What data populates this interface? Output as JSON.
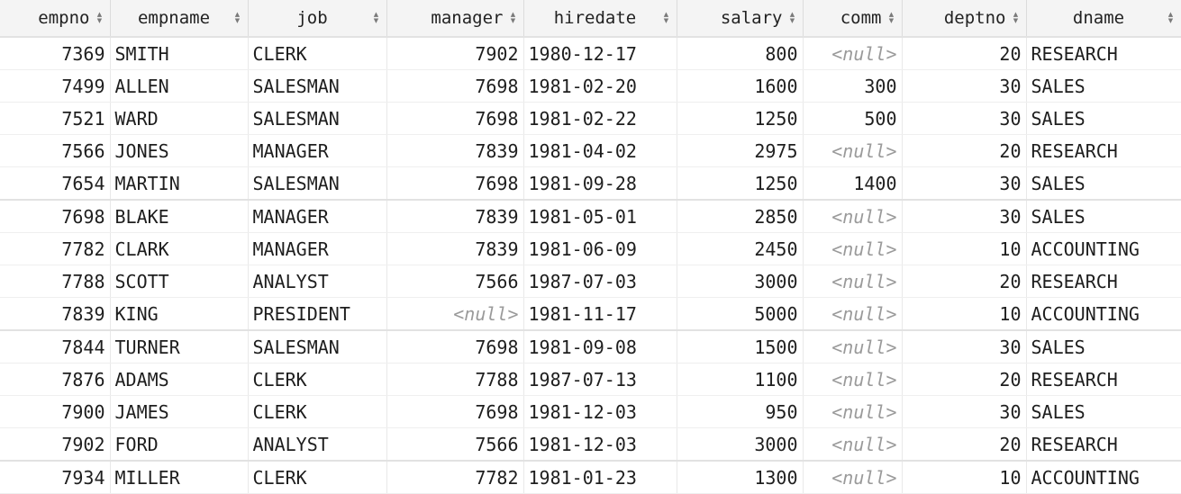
{
  "columns": [
    {
      "label": "empno",
      "align": "num"
    },
    {
      "label": "empname",
      "align": "txt"
    },
    {
      "label": "job",
      "align": "txt"
    },
    {
      "label": "manager",
      "align": "num"
    },
    {
      "label": "hiredate",
      "align": "txt"
    },
    {
      "label": "salary",
      "align": "num"
    },
    {
      "label": "comm",
      "align": "num"
    },
    {
      "label": "deptno",
      "align": "num"
    },
    {
      "label": "dname",
      "align": "txt"
    }
  ],
  "rows": [
    [
      "7369",
      "SMITH",
      "CLERK",
      "7902",
      "1980-12-17",
      "800",
      "<null>",
      "20",
      "RESEARCH"
    ],
    [
      "7499",
      "ALLEN",
      "SALESMAN",
      "7698",
      "1981-02-20",
      "1600",
      "300",
      "30",
      "SALES"
    ],
    [
      "7521",
      "WARD",
      "SALESMAN",
      "7698",
      "1981-02-22",
      "1250",
      "500",
      "30",
      "SALES"
    ],
    [
      "7566",
      "JONES",
      "MANAGER",
      "7839",
      "1981-04-02",
      "2975",
      "<null>",
      "20",
      "RESEARCH"
    ],
    [
      "7654",
      "MARTIN",
      "SALESMAN",
      "7698",
      "1981-09-28",
      "1250",
      "1400",
      "30",
      "SALES"
    ],
    [
      "7698",
      "BLAKE",
      "MANAGER",
      "7839",
      "1981-05-01",
      "2850",
      "<null>",
      "30",
      "SALES"
    ],
    [
      "7782",
      "CLARK",
      "MANAGER",
      "7839",
      "1981-06-09",
      "2450",
      "<null>",
      "10",
      "ACCOUNTING"
    ],
    [
      "7788",
      "SCOTT",
      "ANALYST",
      "7566",
      "1987-07-03",
      "3000",
      "<null>",
      "20",
      "RESEARCH"
    ],
    [
      "7839",
      "KING",
      "PRESIDENT",
      "<null>",
      "1981-11-17",
      "5000",
      "<null>",
      "10",
      "ACCOUNTING"
    ],
    [
      "7844",
      "TURNER",
      "SALESMAN",
      "7698",
      "1981-09-08",
      "1500",
      "<null>",
      "30",
      "SALES"
    ],
    [
      "7876",
      "ADAMS",
      "CLERK",
      "7788",
      "1987-07-13",
      "1100",
      "<null>",
      "20",
      "RESEARCH"
    ],
    [
      "7900",
      "JAMES",
      "CLERK",
      "7698",
      "1981-12-03",
      "950",
      "<null>",
      "30",
      "SALES"
    ],
    [
      "7902",
      "FORD",
      "ANALYST",
      "7566",
      "1981-12-03",
      "3000",
      "<null>",
      "20",
      "RESEARCH"
    ],
    [
      "7934",
      "MILLER",
      "CLERK",
      "7782",
      "1981-01-23",
      "1300",
      "<null>",
      "10",
      "ACCOUNTING"
    ]
  ],
  "null_text": "<null>",
  "colors": {
    "header_bg": "#f4f4f4",
    "null_text": "#9a9a9a",
    "grid_line": "#e9e9e9"
  },
  "icons": {
    "sort": "sort-icon"
  }
}
